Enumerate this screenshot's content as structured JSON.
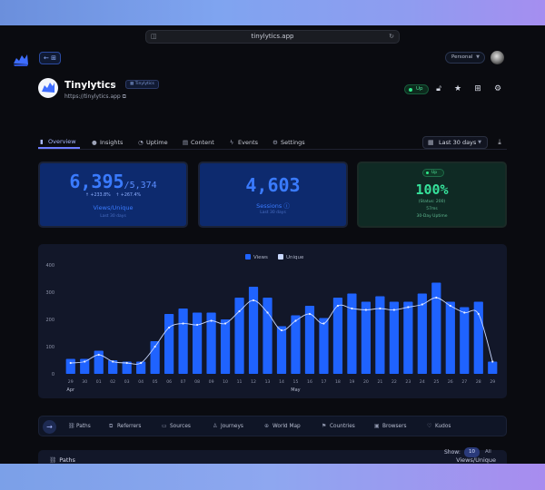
{
  "browser": {
    "url": "tinylytics.app"
  },
  "topbar": {
    "back_icon": "⊞",
    "workspace": "Personal"
  },
  "site": {
    "name": "Tinylytics",
    "badge": "Tinylytics",
    "url": "https://tinylytics.app",
    "status": "Up"
  },
  "tabs": [
    {
      "label": "Overview",
      "icon": "bar-chart-icon",
      "active": true
    },
    {
      "label": "Insights",
      "icon": "lightbulb-icon"
    },
    {
      "label": "Uptime",
      "icon": "pulse-icon"
    },
    {
      "label": "Content",
      "icon": "document-icon"
    },
    {
      "label": "Events",
      "icon": "bolt-icon"
    },
    {
      "label": "Settings",
      "icon": "gear-icon"
    }
  ],
  "date_range": "Last 30 days",
  "stats": {
    "views": {
      "value": "6,395",
      "unique": "/5,374",
      "delta_views": "↑ +233.8%",
      "delta_unique": "↑ +267.4%",
      "label": "Views/Unique",
      "sub": "Last 30 days"
    },
    "sessions": {
      "value": "4,603",
      "label": "Sessions",
      "sub": "Last 30 days"
    },
    "uptime": {
      "badge": "Up",
      "value": "100%",
      "status": "(Status: 200)",
      "latency": "57ms",
      "label": "30-Day Uptime"
    }
  },
  "chart_data": {
    "type": "bar",
    "legend": [
      "Views",
      "Unique"
    ],
    "legend_position": "top-center",
    "ylim": [
      0,
      400
    ],
    "yticks": [
      0,
      100,
      200,
      300,
      400
    ],
    "categories": [
      "29",
      "30",
      "01",
      "02",
      "03",
      "04",
      "05",
      "06",
      "07",
      "08",
      "09",
      "10",
      "11",
      "12",
      "13",
      "14",
      "15",
      "16",
      "17",
      "18",
      "19",
      "20",
      "21",
      "22",
      "23",
      "24",
      "25",
      "26",
      "27",
      "28",
      "29"
    ],
    "month_labels": [
      {
        "index": 0,
        "label": "Apr"
      },
      {
        "index": 16,
        "label": "May"
      }
    ],
    "series": [
      {
        "name": "Views",
        "color": "#1f63ff",
        "values": [
          55,
          55,
          85,
          50,
          45,
          45,
          120,
          220,
          240,
          225,
          225,
          200,
          280,
          320,
          280,
          175,
          215,
          250,
          205,
          280,
          295,
          265,
          285,
          265,
          265,
          295,
          335,
          265,
          245,
          265,
          45
        ]
      },
      {
        "name": "Unique",
        "color": "#c9d8ff",
        "values": [
          40,
          45,
          70,
          45,
          40,
          40,
          100,
          170,
          185,
          180,
          195,
          185,
          230,
          270,
          225,
          160,
          195,
          220,
          185,
          250,
          240,
          235,
          240,
          235,
          245,
          255,
          280,
          250,
          225,
          220,
          45
        ]
      }
    ],
    "grid": false
  },
  "nav": {
    "items": [
      {
        "label": "Paths",
        "icon": "link-icon"
      },
      {
        "label": "Referrers",
        "icon": "external-link-icon"
      },
      {
        "label": "Sources",
        "icon": "chat-icon"
      },
      {
        "label": "Journeys",
        "icon": "user-icon"
      },
      {
        "label": "World Map",
        "icon": "globe-icon"
      },
      {
        "label": "Countries",
        "icon": "flag-icon"
      },
      {
        "label": "Browsers",
        "icon": "window-icon"
      },
      {
        "label": "Kudos",
        "icon": "heart-icon"
      }
    ]
  },
  "paths": {
    "title": "Paths",
    "column": "Views/Unique",
    "show_label": "Show:",
    "show_options": [
      "10",
      "All"
    ]
  }
}
